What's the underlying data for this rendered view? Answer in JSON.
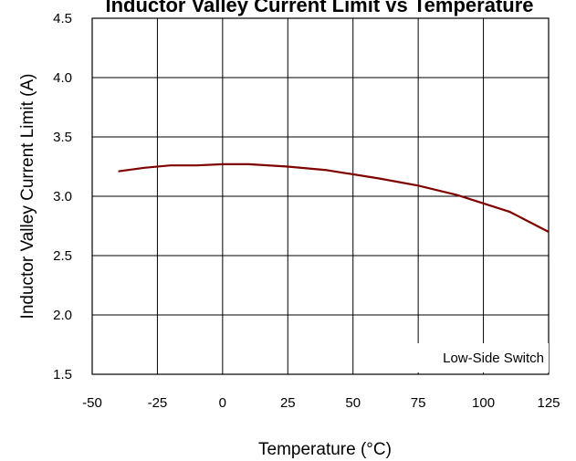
{
  "chart_data": {
    "type": "line",
    "title": "Inductor Valley Current Limit vs Temperature",
    "xlabel": "Temperature (°C)",
    "ylabel": "Inductor Valley Current Limit (A)",
    "xlim": [
      -50,
      125
    ],
    "ylim": [
      1.5,
      4.5
    ],
    "xticks": [
      -50,
      -25,
      0,
      25,
      50,
      75,
      100,
      125
    ],
    "xtick_labels": [
      "-50",
      "-25",
      "0",
      "25",
      "50",
      "75",
      "100",
      "125"
    ],
    "yticks": [
      1.5,
      2.0,
      2.5,
      3.0,
      3.5,
      4.0,
      4.5
    ],
    "ytick_labels": [
      "1.5",
      "2.0",
      "2.5",
      "3.0",
      "3.5",
      "4.0",
      "4.5"
    ],
    "grid": true,
    "legend": "none",
    "annotation": "Low-Side Switch",
    "series": [
      {
        "color": "#800000",
        "x": [
          -40,
          -30,
          -20,
          -10,
          0,
          10,
          25,
          40,
          60,
          75,
          90,
          100,
          110,
          125
        ],
        "y": [
          3.21,
          3.24,
          3.26,
          3.26,
          3.27,
          3.27,
          3.25,
          3.22,
          3.15,
          3.09,
          3.01,
          2.94,
          2.87,
          2.7
        ]
      }
    ]
  }
}
